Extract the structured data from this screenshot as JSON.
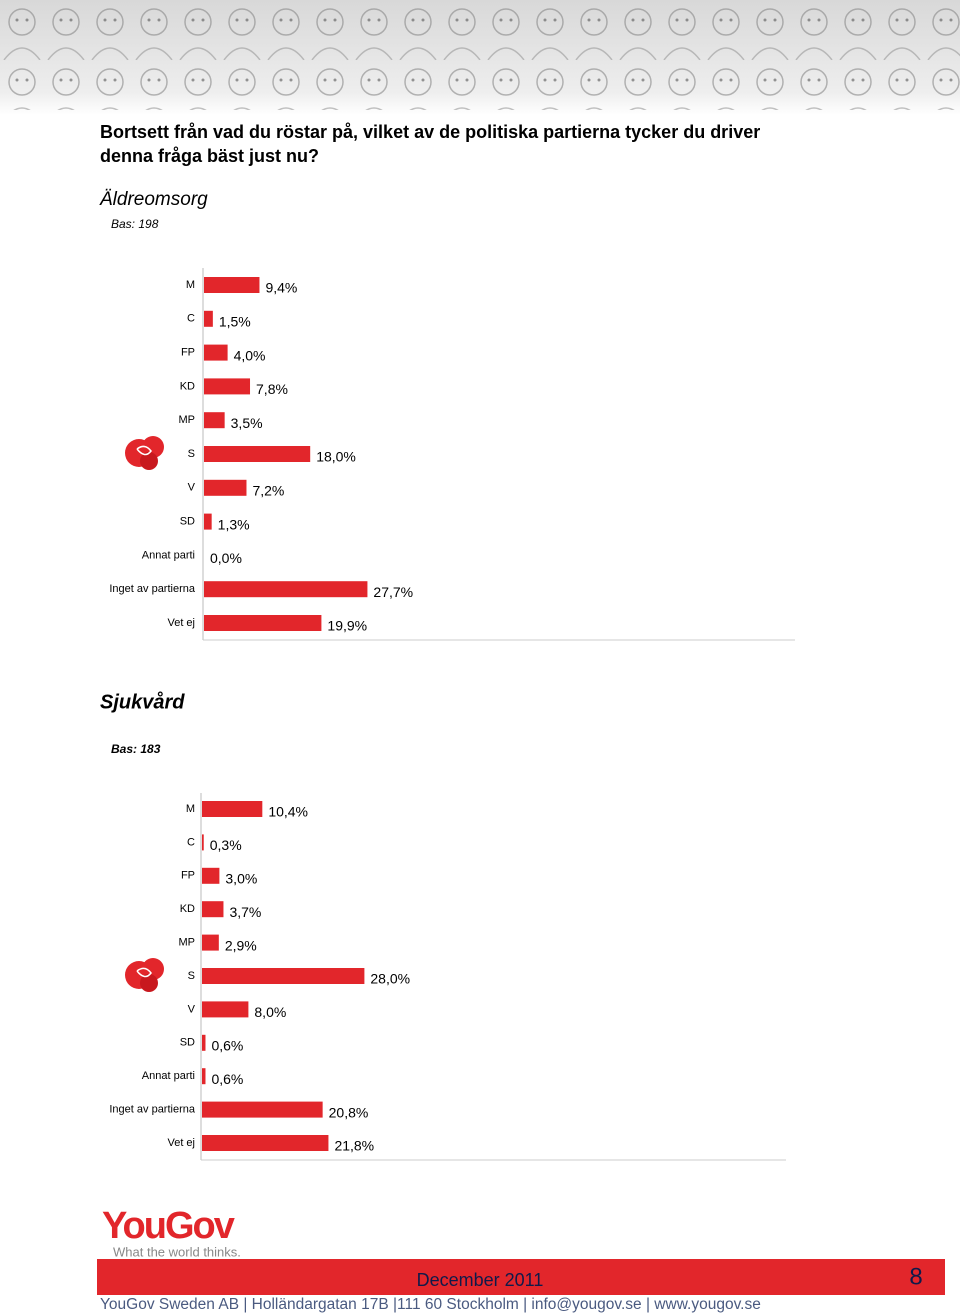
{
  "question": [
    "Bortsett från vad du röstar på, vilket av de politiska partierna tycker du driver",
    "denna fråga bäst just nu?"
  ],
  "chart_data": [
    {
      "type": "bar",
      "orientation": "horizontal",
      "title": "Äldreomsorg",
      "subtitle": "Bas: 198",
      "color": "#e2262b",
      "categories": [
        "M",
        "C",
        "FP",
        "KD",
        "MP",
        "S",
        "V",
        "SD",
        "Annat parti",
        "Inget av partierna",
        "Vet ej"
      ],
      "values": [
        9.4,
        1.5,
        4.0,
        7.8,
        3.5,
        18.0,
        7.2,
        1.3,
        0.0,
        27.7,
        19.9
      ],
      "value_labels": [
        "9,4%",
        "1,5%",
        "4,0%",
        "7,8%",
        "3,5%",
        "18,0%",
        "7,2%",
        "1,3%",
        "0,0%",
        "27,7%",
        "19,9%"
      ]
    },
    {
      "type": "bar",
      "orientation": "horizontal",
      "title": "Sjukvård",
      "subtitle": "Bas: 183",
      "color": "#e2262b",
      "categories": [
        "M",
        "C",
        "FP",
        "KD",
        "MP",
        "S",
        "V",
        "SD",
        "Annat parti",
        "Inget av partierna",
        "Vet ej"
      ],
      "values": [
        10.4,
        0.3,
        3.0,
        3.7,
        2.9,
        28.0,
        8.0,
        0.6,
        0.6,
        20.8,
        21.8
      ],
      "value_labels": [
        "10,4%",
        "0,3%",
        "3,0%",
        "3,7%",
        "2,9%",
        "28,0%",
        "8,0%",
        "0,6%",
        "0,6%",
        "20,8%",
        "21,8%"
      ]
    }
  ],
  "logo": {
    "name": "YouGov",
    "tagline": "What the world thinks."
  },
  "footer": {
    "date": "December 2011",
    "page": "8",
    "address": "YouGov Sweden AB | Holländargatan 17B |111 60 Stockholm | info@yougov.se | www.yougov.se"
  }
}
